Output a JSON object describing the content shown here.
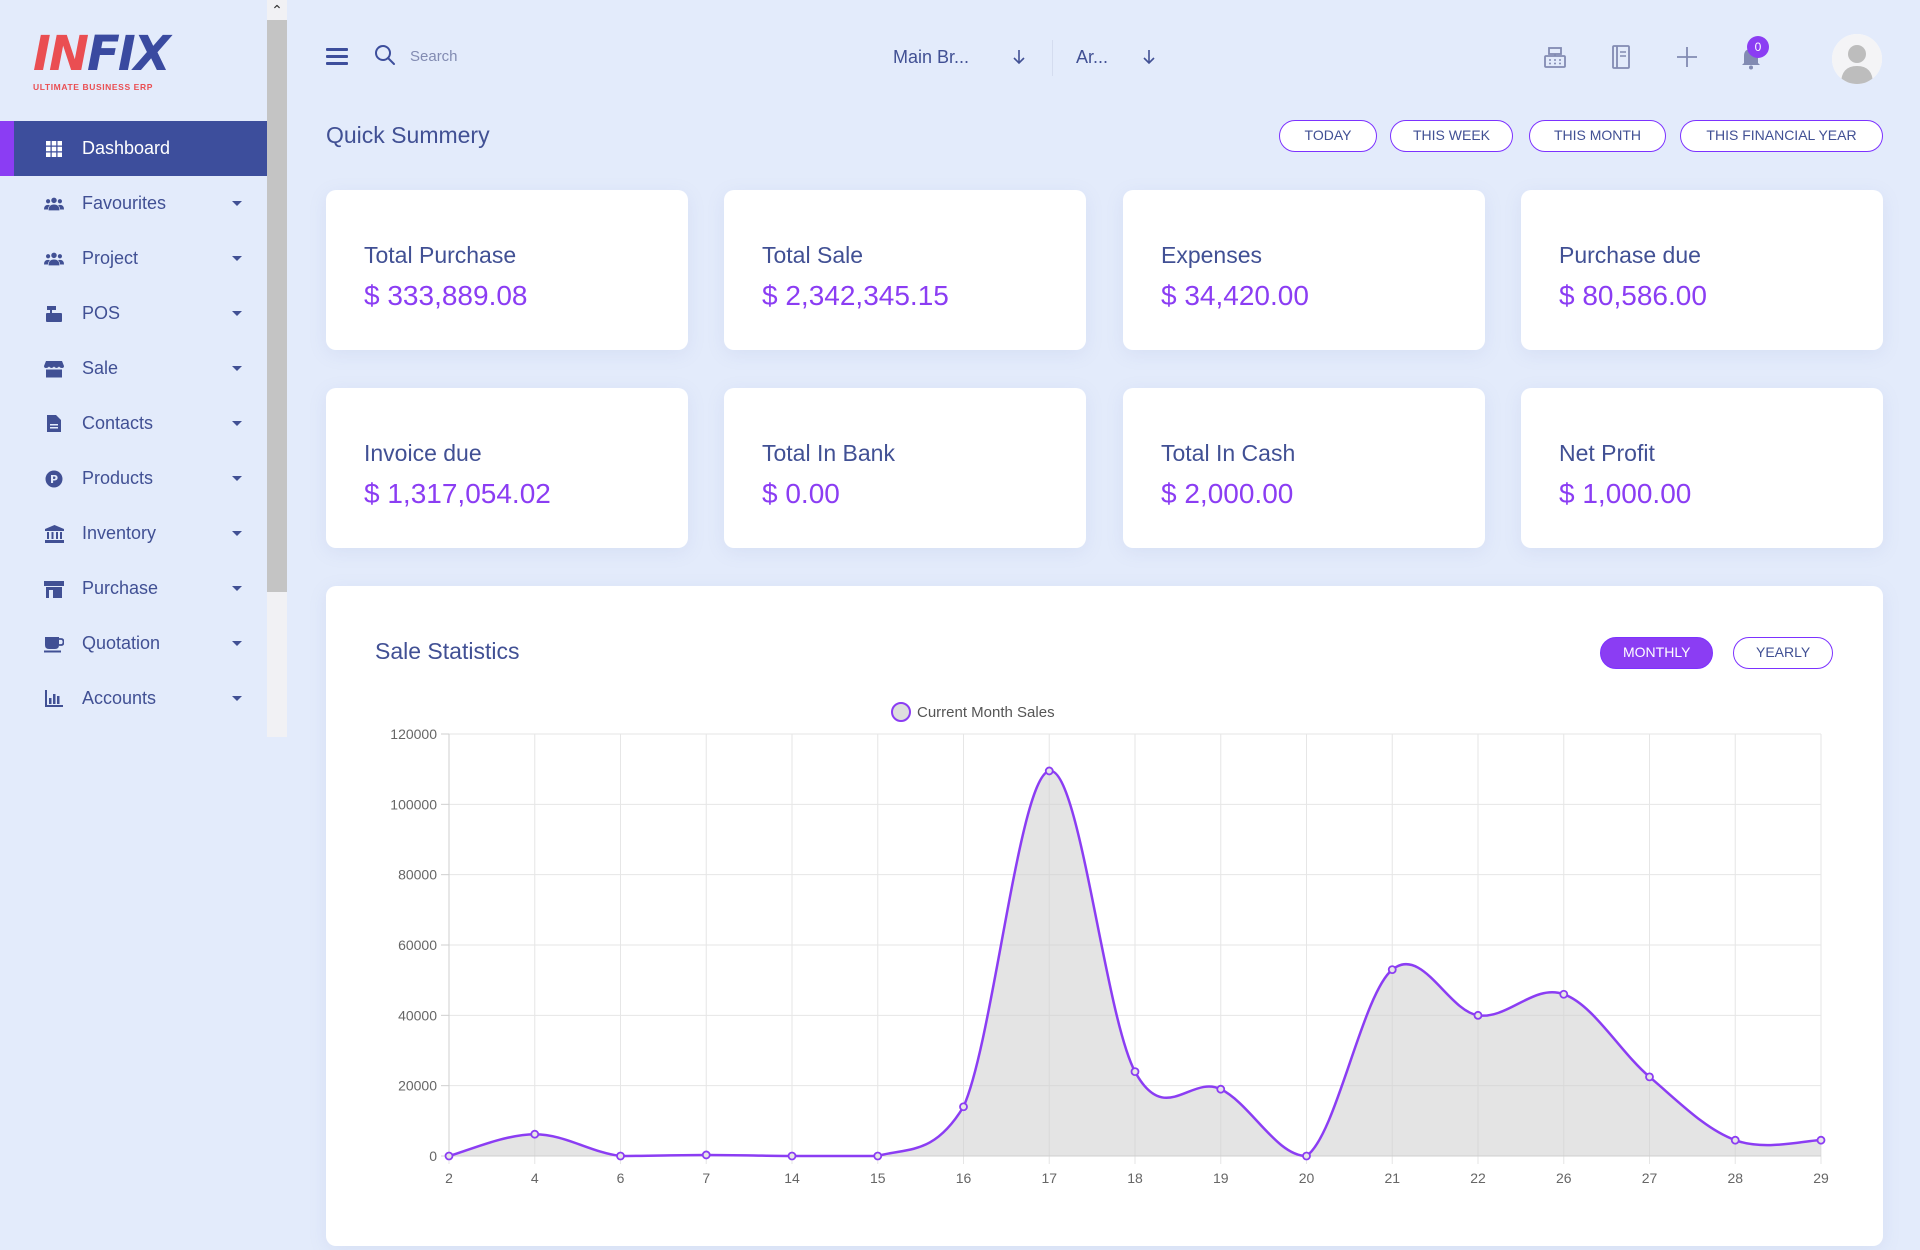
{
  "logo": {
    "name_part1": "IN",
    "name_part2": "FIX",
    "tagline": "ULTIMATE BUSINESS ERP"
  },
  "sidebar": {
    "items": [
      {
        "label": "Dashboard",
        "icon": "grid-icon",
        "active": true
      },
      {
        "label": "Favourites",
        "icon": "users-icon"
      },
      {
        "label": "Project",
        "icon": "users-icon"
      },
      {
        "label": "POS",
        "icon": "cash-register-icon"
      },
      {
        "label": "Sale",
        "icon": "store-icon"
      },
      {
        "label": "Contacts",
        "icon": "document-icon"
      },
      {
        "label": "Products",
        "icon": "product-p-icon"
      },
      {
        "label": "Inventory",
        "icon": "bank-icon"
      },
      {
        "label": "Purchase",
        "icon": "shop-icon"
      },
      {
        "label": "Quotation",
        "icon": "coffee-icon"
      },
      {
        "label": "Accounts",
        "icon": "bar-chart-icon"
      }
    ]
  },
  "header": {
    "search_placeholder": "Search",
    "branch": "Main Br...",
    "area": "Ar...",
    "notification_count": "0"
  },
  "summary": {
    "title": "Quick Summery",
    "filters": [
      "TODAY",
      "THIS WEEK",
      "THIS MONTH",
      "THIS FINANCIAL YEAR"
    ],
    "cards": [
      {
        "label": "Total Purchase",
        "value": "$ 333,889.08"
      },
      {
        "label": "Total Sale",
        "value": "$ 2,342,345.15"
      },
      {
        "label": "Expenses",
        "value": "$ 34,420.00"
      },
      {
        "label": "Purchase due",
        "value": "$ 80,586.00"
      },
      {
        "label": "Invoice due",
        "value": "$ 1,317,054.02"
      },
      {
        "label": "Total In Bank",
        "value": "$ 0.00"
      },
      {
        "label": "Total In Cash",
        "value": "$ 2,000.00"
      },
      {
        "label": "Net Profit",
        "value": "$ 1,000.00"
      }
    ]
  },
  "stats": {
    "title": "Sale Statistics",
    "monthly_label": "MONTHLY",
    "yearly_label": "YEARLY"
  },
  "colors": {
    "accent": "#8b3df3",
    "primary": "#415094",
    "active_nav": "#3d4e9c",
    "background": "#e3ebfb"
  },
  "chart_data": {
    "type": "line",
    "categories": [
      "2",
      "4",
      "6",
      "7",
      "14",
      "15",
      "16",
      "17",
      "18",
      "19",
      "20",
      "21",
      "22",
      "26",
      "27",
      "28",
      "29"
    ],
    "series": [
      {
        "name": "Current Month Sales",
        "values": [
          0,
          6200,
          0,
          300,
          0,
          0,
          14000,
          109500,
          24000,
          19000,
          0,
          53000,
          40000,
          46000,
          22500,
          4500,
          4500
        ]
      }
    ],
    "ylim": [
      0,
      120000
    ],
    "yticks": [
      0,
      20000,
      40000,
      60000,
      80000,
      100000,
      120000
    ],
    "legend": "top-center",
    "grid": true,
    "area_fill": true
  }
}
